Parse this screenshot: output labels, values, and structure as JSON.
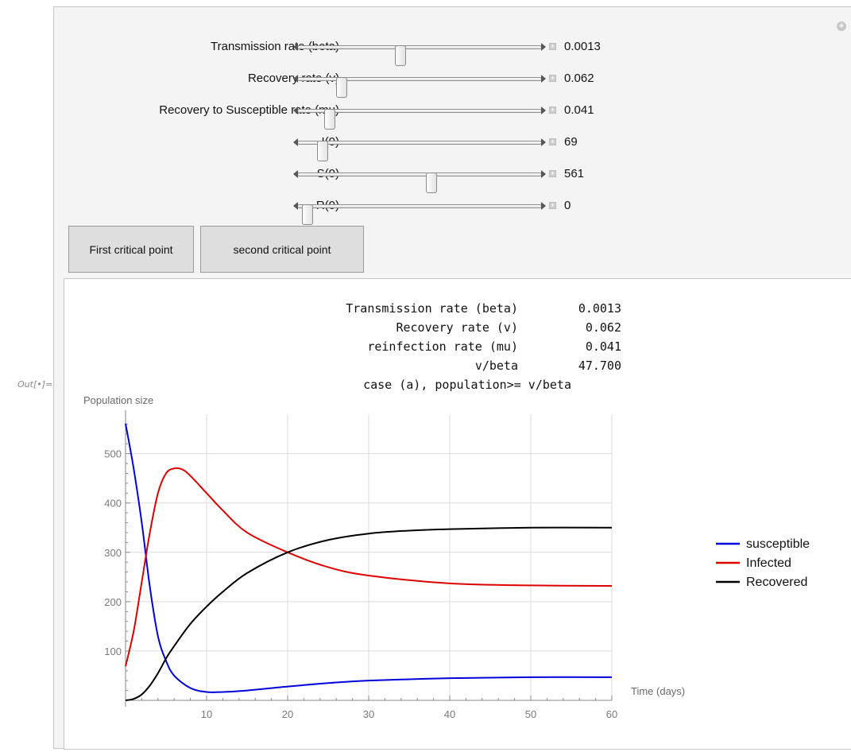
{
  "out_label": "Out[•]=",
  "controls": [
    {
      "label": "Transmission rate (beta)",
      "value": "0.0013",
      "fraction": 0.42
    },
    {
      "label": "Recovery rate (v)",
      "value": "0.062",
      "fraction": 0.18
    },
    {
      "label": "Recovery to Susceptible rate (mu)",
      "value": "0.041",
      "fraction": 0.13
    },
    {
      "label": "I(0)",
      "value": "69",
      "fraction": 0.1
    },
    {
      "label": "S(0)",
      "value": "561",
      "fraction": 0.55
    },
    {
      "label": "R(0)",
      "value": "0",
      "fraction": 0.04
    }
  ],
  "buttons": {
    "first": "First critical point",
    "second": "second critical point"
  },
  "info": {
    "rows": [
      {
        "key": "Transmission rate (beta)",
        "value": "0.0013"
      },
      {
        "key": "Recovery rate (v)",
        "value": "0.062"
      },
      {
        "key": "reinfection rate (mu)",
        "value": "0.041"
      },
      {
        "key": "v/beta",
        "value": "47.700"
      }
    ],
    "case_text": "case (a), population>= v/beta"
  },
  "chart_data": {
    "type": "line",
    "ylabel": "Population size",
    "xlabel": "Time (days)",
    "xlim": [
      0,
      60
    ],
    "ylim": [
      0,
      580
    ],
    "x_ticks": [
      "10",
      "20",
      "30",
      "40",
      "50",
      "60"
    ],
    "y_ticks": [
      "100",
      "200",
      "300",
      "400",
      "500"
    ],
    "grid": true,
    "legend_position": "right",
    "series": [
      {
        "name": "susceptible",
        "color": "#0000dd",
        "x": [
          0,
          1,
          2,
          3,
          4,
          5,
          6,
          8,
          10,
          12,
          15,
          20,
          25,
          30,
          40,
          50,
          60
        ],
        "y": [
          561,
          470,
          360,
          230,
          130,
          80,
          50,
          25,
          17,
          17,
          20,
          28,
          35,
          40,
          45,
          47,
          47
        ]
      },
      {
        "name": "Infected",
        "color": "#dd0000",
        "x": [
          0,
          1,
          2,
          3,
          4,
          5,
          6,
          7,
          8,
          10,
          12,
          15,
          20,
          25,
          30,
          40,
          50,
          60
        ],
        "y": [
          69,
          140,
          240,
          340,
          420,
          460,
          470,
          468,
          455,
          420,
          385,
          340,
          300,
          270,
          253,
          237,
          233,
          232
        ]
      },
      {
        "name": "Recovered",
        "color": "#000000",
        "x": [
          0,
          1,
          2,
          3,
          4,
          5,
          6,
          8,
          10,
          12,
          15,
          20,
          25,
          30,
          35,
          40,
          50,
          60
        ],
        "y": [
          0,
          3,
          12,
          30,
          55,
          85,
          110,
          155,
          190,
          220,
          258,
          300,
          325,
          338,
          344,
          347,
          350,
          350
        ]
      }
    ]
  }
}
